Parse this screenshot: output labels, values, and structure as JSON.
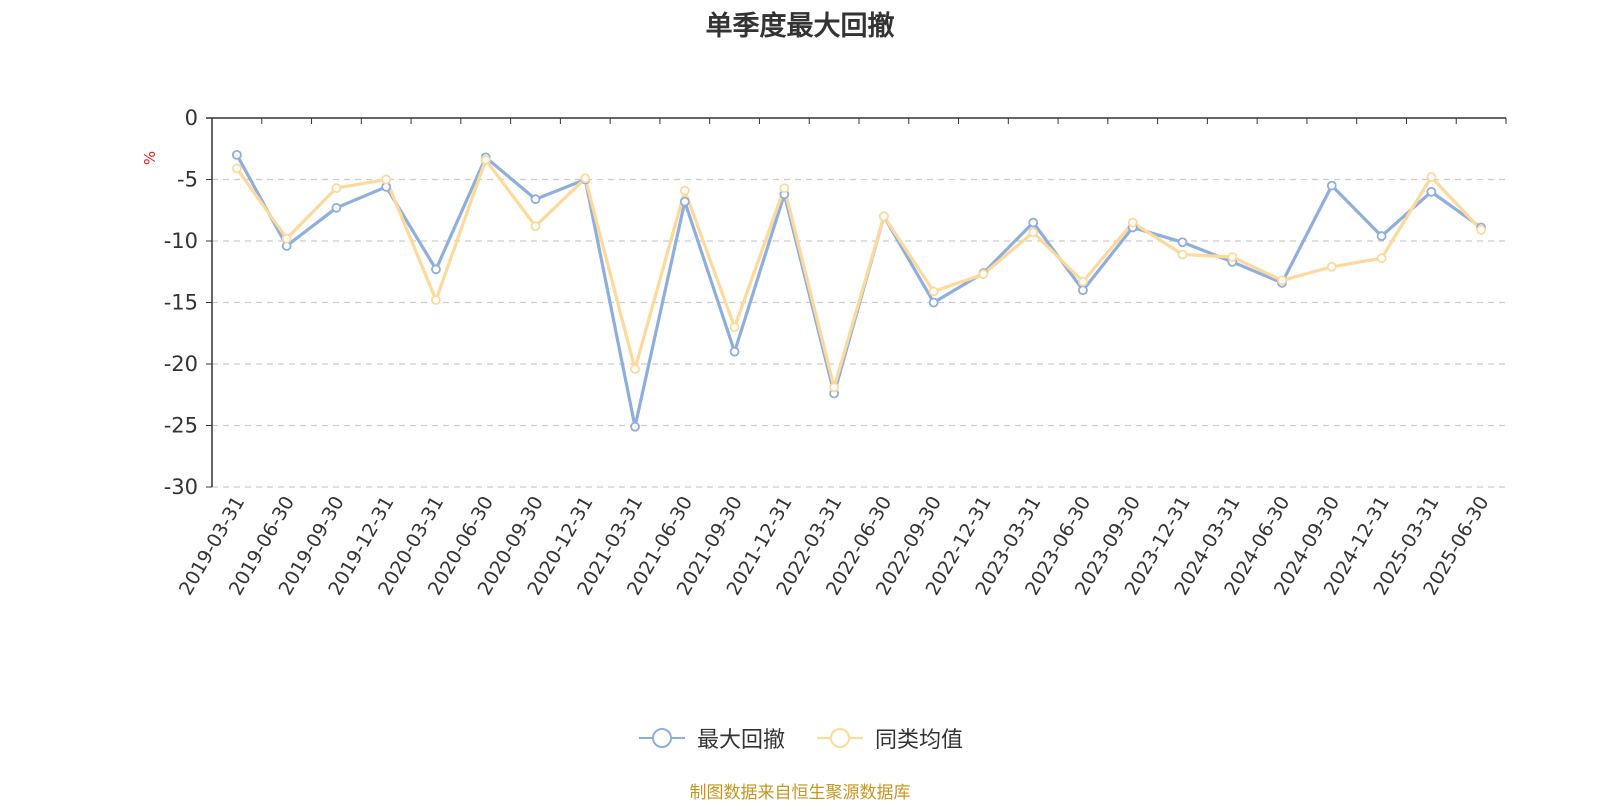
{
  "chart_data": {
    "type": "line",
    "title": "单季度最大回撤",
    "ylabel": "%",
    "ylim": [
      -30,
      0
    ],
    "yticks": [
      0,
      -5,
      -10,
      -15,
      -20,
      -25,
      -30
    ],
    "grid": true,
    "legend_position": "bottom",
    "categories": [
      "2019-03-31",
      "2019-06-30",
      "2019-09-30",
      "2019-12-31",
      "2020-03-31",
      "2020-06-30",
      "2020-09-30",
      "2020-12-31",
      "2021-03-31",
      "2021-06-30",
      "2021-09-30",
      "2021-12-31",
      "2022-03-31",
      "2022-06-30",
      "2022-09-30",
      "2022-12-31",
      "2023-03-31",
      "2023-06-30",
      "2023-09-30",
      "2023-12-31",
      "2024-03-31",
      "2024-06-30",
      "2024-09-30",
      "2024-12-31",
      "2025-03-31",
      "2025-06-30"
    ],
    "series": [
      {
        "name": "最大回撤",
        "color": "#8eaedc",
        "values": [
          -3.0,
          -10.4,
          -7.3,
          -5.6,
          -12.3,
          -3.2,
          -6.6,
          -5.0,
          -25.1,
          -6.8,
          -19.0,
          -6.2,
          -22.4,
          -8.0,
          -15.0,
          -12.6,
          -8.5,
          -14.0,
          -8.9,
          -10.1,
          -11.7,
          -13.4,
          -5.5,
          -9.6,
          -6.0,
          -8.9
        ]
      },
      {
        "name": "同类均值",
        "color": "#fdd99b",
        "values": [
          -4.1,
          -9.8,
          -5.7,
          -5.0,
          -14.8,
          -3.4,
          -8.8,
          -4.9,
          -20.4,
          -5.9,
          -17.0,
          -5.7,
          -21.9,
          -8.0,
          -14.1,
          -12.7,
          -9.3,
          -13.3,
          -8.5,
          -11.1,
          -11.3,
          -13.2,
          -12.1,
          -11.4,
          -4.8,
          -9.1
        ]
      }
    ]
  },
  "footer": {
    "source": "制图数据来自恒生聚源数据库"
  }
}
